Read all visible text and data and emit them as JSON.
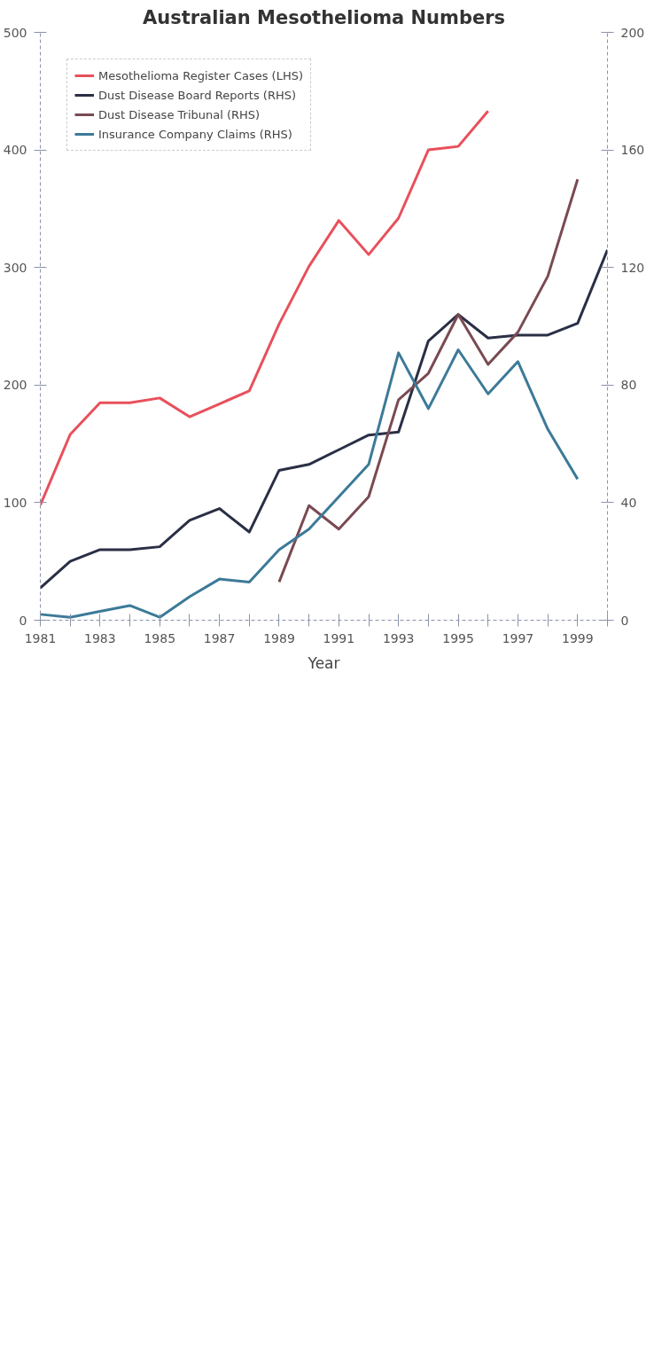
{
  "chart_data": {
    "type": "line",
    "title": "Australian Mesothelioma Numbers",
    "xlabel": "Year",
    "x": [
      1981,
      1982,
      1983,
      1984,
      1985,
      1986,
      1987,
      1988,
      1989,
      1990,
      1991,
      1992,
      1993,
      1994,
      1995,
      1996,
      1997,
      1998,
      1999,
      2000
    ],
    "xlim": [
      1981,
      2000
    ],
    "xticks": [
      1981,
      {
        "value": 1982,
        "label": null
      },
      1983,
      {
        "value": 1984,
        "label": null
      },
      1985,
      {
        "value": 1986,
        "label": null
      },
      1987,
      {
        "value": 1988,
        "label": null
      },
      1989,
      {
        "value": 1990,
        "label": null
      },
      1991,
      {
        "value": 1992,
        "label": null
      },
      1993,
      {
        "value": 1994,
        "label": null
      },
      1995,
      {
        "value": 1996,
        "label": null
      },
      1997,
      {
        "value": 1998,
        "label": null
      },
      1999,
      {
        "value": 2000,
        "label": null
      }
    ],
    "ylim": [
      0,
      500
    ],
    "yticks": [
      0,
      100,
      200,
      300,
      400,
      500
    ],
    "y2lim": [
      0,
      200
    ],
    "y2ticks": [
      0,
      40,
      80,
      120,
      160,
      200
    ],
    "grid": false,
    "legend": "top left",
    "series": [
      {
        "name": "Mesothelioma Register Cases (LHS)",
        "color": "#e8505b",
        "values": [
          98,
          158,
          185,
          185,
          189,
          173,
          184,
          195,
          252,
          301,
          340,
          311,
          342,
          400,
          403,
          433,
          null,
          null,
          null,
          null
        ]
      },
      {
        "name": "Dust Disease Board Reports (RHS)",
        "color": "#2a2f45",
        "axis": "y2",
        "values": [
          11,
          20,
          24,
          24,
          25,
          34,
          38,
          30,
          51,
          53,
          58,
          63,
          64,
          95,
          104,
          96,
          97,
          97,
          101,
          126
        ]
      },
      {
        "name": "Dust Disease Tribunal (RHS)",
        "color": "#7a4a52",
        "axis": "y2",
        "values": [
          null,
          null,
          null,
          null,
          null,
          null,
          null,
          null,
          13,
          39,
          31,
          42,
          75,
          84,
          104,
          87,
          98,
          117,
          150,
          null
        ]
      },
      {
        "name": "Insurance Company Claims (RHS)",
        "color": "#3c7a98",
        "axis": "y2",
        "values": [
          2,
          1,
          3,
          5,
          1,
          8,
          14,
          13,
          24,
          31,
          42,
          53,
          91,
          72,
          92,
          77,
          88,
          65,
          48,
          null
        ]
      }
    ]
  }
}
